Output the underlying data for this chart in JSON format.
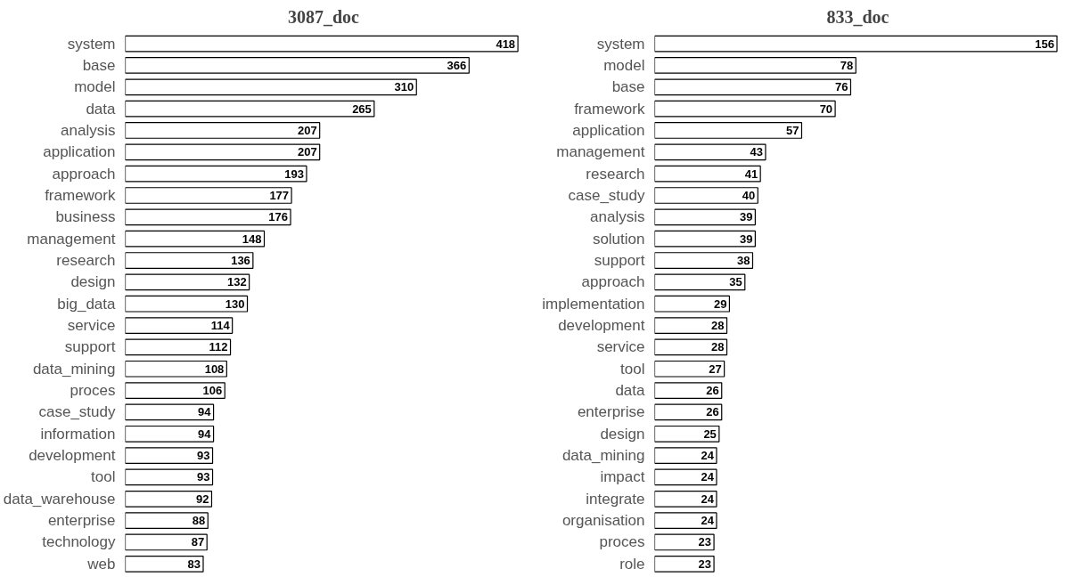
{
  "chart_data": [
    {
      "type": "bar",
      "orientation": "horizontal",
      "title": "3087_doc",
      "data_labels": true,
      "grid": false,
      "color": "#ffffff",
      "categories": [
        "system",
        "base",
        "model",
        "data",
        "analysis",
        "application",
        "approach",
        "framework",
        "business",
        "management",
        "research",
        "design",
        "big_data",
        "service",
        "support",
        "data_mining",
        "proces",
        "case_study",
        "information",
        "development",
        "tool",
        "data_warehouse",
        "enterprise",
        "technology",
        "web"
      ],
      "values": [
        418,
        366,
        310,
        265,
        207,
        207,
        193,
        177,
        176,
        148,
        136,
        132,
        130,
        114,
        112,
        108,
        106,
        94,
        94,
        93,
        93,
        92,
        88,
        87,
        83
      ]
    },
    {
      "type": "bar",
      "orientation": "horizontal",
      "title": "833_doc",
      "data_labels": true,
      "grid": false,
      "color": "#ffffff",
      "categories": [
        "system",
        "model",
        "base",
        "framework",
        "application",
        "management",
        "research",
        "case_study",
        "analysis",
        "solution",
        "support",
        "approach",
        "implementation",
        "development",
        "service",
        "tool",
        "data",
        "enterprise",
        "design",
        "data_mining",
        "impact",
        "integrate",
        "organisation",
        "proces",
        "role"
      ],
      "values": [
        156,
        78,
        76,
        70,
        57,
        43,
        41,
        40,
        39,
        39,
        38,
        35,
        29,
        28,
        28,
        27,
        26,
        26,
        25,
        24,
        24,
        24,
        24,
        23,
        23
      ]
    }
  ]
}
